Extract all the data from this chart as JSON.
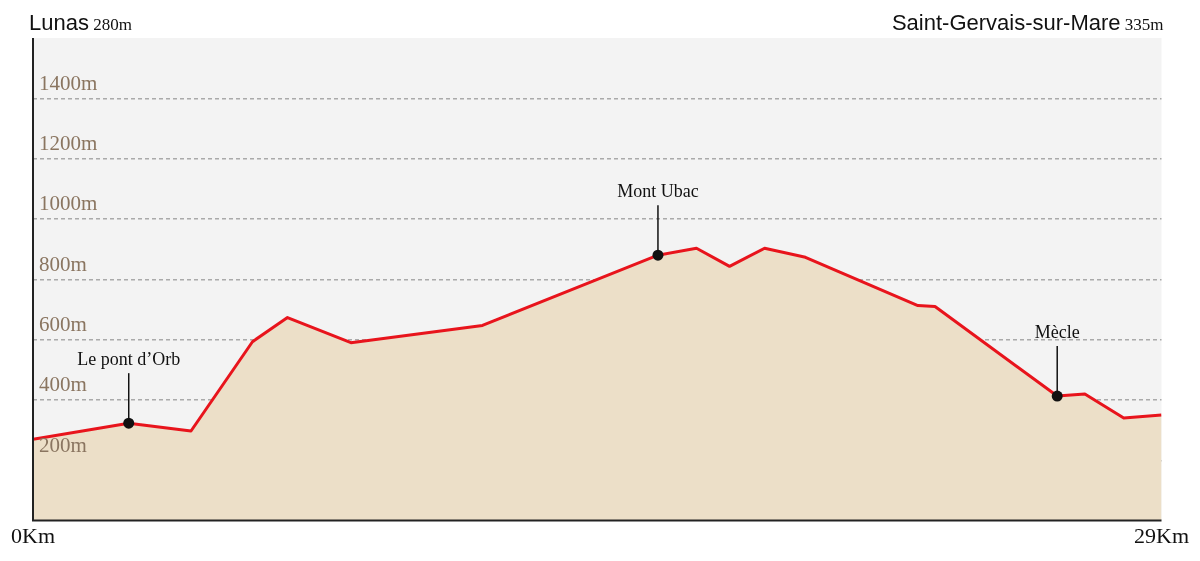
{
  "chart_data": {
    "type": "area",
    "x": [
      0,
      2.46,
      4.06,
      5.64,
      6.54,
      8.17,
      11.55,
      16.06,
      17.05,
      17.9,
      18.8,
      19.85,
      22.74,
      23.18,
      26.32,
      27.03,
      28.03,
      29
    ],
    "series": [
      {
        "color": "#e8141c",
        "values": [
          270,
          323,
          297,
          593,
          673,
          590,
          647,
          880,
          903,
          843,
          903,
          873,
          713,
          710,
          413,
          420,
          340,
          350
        ]
      }
    ],
    "xlim": [
      0,
      29
    ],
    "xticks": [
      {
        "value": 0,
        "label": "0Km"
      },
      {
        "value": 29,
        "label": "29Km"
      }
    ],
    "ylim": [
      0,
      1600
    ],
    "yticks": [
      {
        "value": 200,
        "label": "200m"
      },
      {
        "value": 400,
        "label": "400m"
      },
      {
        "value": 600,
        "label": "600m"
      },
      {
        "value": 800,
        "label": "800m"
      },
      {
        "value": 1000,
        "label": "1000m"
      },
      {
        "value": 1200,
        "label": "1200m"
      },
      {
        "value": 1400,
        "label": "1400m"
      }
    ],
    "grid": "y",
    "marker": "none",
    "line_style": "solid",
    "annotations": [
      "Lunas 280m",
      "Saint-Gervais-sur-Mare 335m",
      {
        "text": "Le pont d’Orb",
        "x": 2.46,
        "y": 323
      },
      {
        "text": "Mont Ubac",
        "x": 16.06,
        "y": 880
      },
      {
        "text": "Mècle",
        "x": 26.32,
        "y": 413
      }
    ]
  }
}
